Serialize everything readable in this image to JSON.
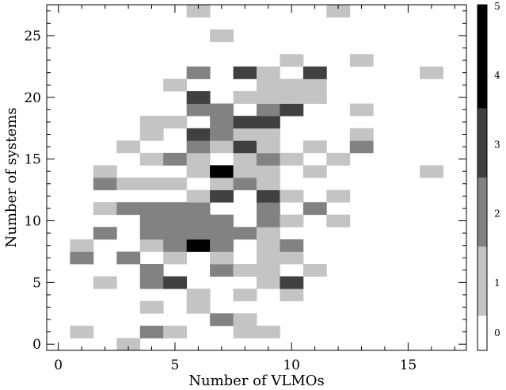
{
  "chart_data": {
    "type": "heatmap",
    "xlabel": "Number of VLMOs",
    "ylabel": "Number of systems",
    "xlim": [
      -0.5,
      17.5
    ],
    "ylim": [
      -0.5,
      27.5
    ],
    "xticks": [
      "0",
      "5",
      "10",
      "15"
    ],
    "xtick_values": [
      0,
      5,
      10,
      15
    ],
    "yticks": [
      "0",
      "5",
      "10",
      "15",
      "20",
      "25"
    ],
    "ytick_values": [
      0,
      5,
      10,
      15,
      20,
      25
    ],
    "colorbar": {
      "min": 0,
      "max": 5,
      "ticks": [
        "0",
        "1",
        "2",
        "3",
        "4",
        "5"
      ],
      "colormap": "white-to-black"
    },
    "levels": [
      {
        "value": 1,
        "color": "#c4c4c4"
      },
      {
        "value": 2,
        "color": "#828282"
      },
      {
        "value": 3,
        "color": "#404040"
      },
      {
        "value": 4,
        "color": "#1a1a1a"
      },
      {
        "value": 5,
        "color": "#000000"
      }
    ],
    "cells": [
      [
        3,
        0,
        1
      ],
      [
        1,
        1,
        1
      ],
      [
        4,
        1,
        2
      ],
      [
        5,
        1,
        1
      ],
      [
        8,
        1,
        1
      ],
      [
        9,
        1,
        1
      ],
      [
        7,
        2,
        2
      ],
      [
        8,
        2,
        1
      ],
      [
        4,
        3,
        1
      ],
      [
        6,
        3,
        1
      ],
      [
        6,
        4,
        1
      ],
      [
        8,
        4,
        1
      ],
      [
        10,
        4,
        1
      ],
      [
        2,
        5,
        1
      ],
      [
        4,
        5,
        2
      ],
      [
        5,
        5,
        3
      ],
      [
        9,
        5,
        1
      ],
      [
        10,
        5,
        3
      ],
      [
        4,
        6,
        2
      ],
      [
        7,
        6,
        2
      ],
      [
        8,
        6,
        1
      ],
      [
        9,
        6,
        1
      ],
      [
        11,
        6,
        1
      ],
      [
        1,
        7,
        2
      ],
      [
        3,
        7,
        2
      ],
      [
        5,
        7,
        1
      ],
      [
        7,
        7,
        1
      ],
      [
        9,
        7,
        1
      ],
      [
        10,
        7,
        1
      ],
      [
        1,
        8,
        1
      ],
      [
        4,
        8,
        1
      ],
      [
        5,
        8,
        2
      ],
      [
        6,
        8,
        5
      ],
      [
        7,
        8,
        2
      ],
      [
        9,
        8,
        1
      ],
      [
        10,
        8,
        2
      ],
      [
        2,
        9,
        2
      ],
      [
        4,
        9,
        2
      ],
      [
        5,
        9,
        2
      ],
      [
        6,
        9,
        2
      ],
      [
        7,
        9,
        2
      ],
      [
        8,
        9,
        2
      ],
      [
        9,
        9,
        1
      ],
      [
        4,
        10,
        2
      ],
      [
        5,
        10,
        2
      ],
      [
        6,
        10,
        2
      ],
      [
        7,
        10,
        2
      ],
      [
        9,
        10,
        2
      ],
      [
        10,
        10,
        1
      ],
      [
        12,
        10,
        1
      ],
      [
        2,
        11,
        1
      ],
      [
        3,
        11,
        2
      ],
      [
        4,
        11,
        2
      ],
      [
        5,
        11,
        2
      ],
      [
        6,
        11,
        2
      ],
      [
        9,
        11,
        2
      ],
      [
        11,
        11,
        2
      ],
      [
        6,
        12,
        1
      ],
      [
        7,
        12,
        3
      ],
      [
        9,
        12,
        3
      ],
      [
        10,
        12,
        1
      ],
      [
        12,
        12,
        1
      ],
      [
        2,
        13,
        2
      ],
      [
        3,
        13,
        1
      ],
      [
        4,
        13,
        1
      ],
      [
        5,
        13,
        1
      ],
      [
        7,
        13,
        1
      ],
      [
        8,
        13,
        2
      ],
      [
        9,
        13,
        1
      ],
      [
        2,
        14,
        1
      ],
      [
        6,
        14,
        1
      ],
      [
        7,
        14,
        5
      ],
      [
        8,
        14,
        1
      ],
      [
        9,
        14,
        1
      ],
      [
        11,
        14,
        1
      ],
      [
        16,
        14,
        1
      ],
      [
        4,
        15,
        1
      ],
      [
        5,
        15,
        2
      ],
      [
        6,
        15,
        1
      ],
      [
        8,
        15,
        1
      ],
      [
        9,
        15,
        2
      ],
      [
        10,
        15,
        1
      ],
      [
        12,
        15,
        1
      ],
      [
        3,
        16,
        1
      ],
      [
        6,
        16,
        2
      ],
      [
        7,
        16,
        1
      ],
      [
        8,
        16,
        3
      ],
      [
        9,
        16,
        1
      ],
      [
        11,
        16,
        1
      ],
      [
        13,
        16,
        2
      ],
      [
        4,
        17,
        1
      ],
      [
        6,
        17,
        3
      ],
      [
        7,
        17,
        2
      ],
      [
        8,
        17,
        1
      ],
      [
        9,
        17,
        1
      ],
      [
        13,
        17,
        1
      ],
      [
        4,
        18,
        1
      ],
      [
        5,
        18,
        1
      ],
      [
        7,
        18,
        2
      ],
      [
        8,
        18,
        3
      ],
      [
        9,
        18,
        3
      ],
      [
        6,
        19,
        2
      ],
      [
        7,
        19,
        2
      ],
      [
        9,
        19,
        2
      ],
      [
        10,
        19,
        3
      ],
      [
        13,
        19,
        1
      ],
      [
        6,
        20,
        3
      ],
      [
        8,
        20,
        1
      ],
      [
        9,
        20,
        1
      ],
      [
        10,
        20,
        1
      ],
      [
        11,
        20,
        1
      ],
      [
        5,
        21,
        1
      ],
      [
        9,
        21,
        1
      ],
      [
        10,
        21,
        1
      ],
      [
        11,
        21,
        1
      ],
      [
        6,
        22,
        2
      ],
      [
        8,
        22,
        3
      ],
      [
        9,
        22,
        1
      ],
      [
        11,
        22,
        3
      ],
      [
        16,
        22,
        1
      ],
      [
        10,
        23,
        1
      ],
      [
        13,
        23,
        1
      ],
      [
        7,
        25,
        1
      ],
      [
        6,
        27,
        1
      ],
      [
        12,
        27,
        1
      ]
    ]
  }
}
